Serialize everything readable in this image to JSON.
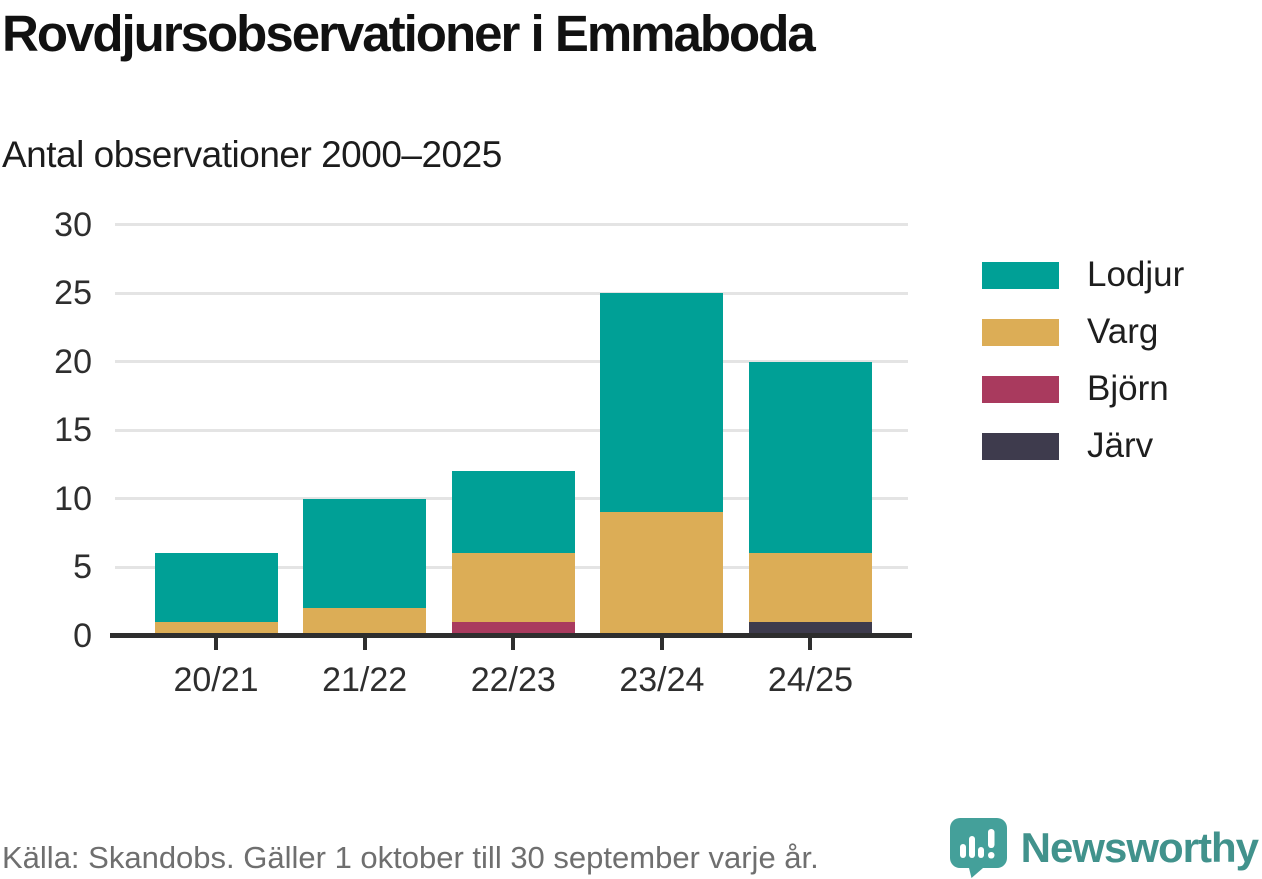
{
  "header": {
    "title": "Rovdjursobservationer i Emmaboda",
    "subtitle": "Antal observationer 2000–2025"
  },
  "chart_data": {
    "type": "bar",
    "stacked": true,
    "title": "Rovdjursobservationer i Emmaboda",
    "subtitle": "Antal observationer 2000–2025",
    "categories": [
      "20/21",
      "21/22",
      "22/23",
      "23/24",
      "24/25"
    ],
    "series": [
      {
        "name": "Lodjur",
        "color": "#00a096",
        "values": [
          5,
          8,
          6,
          16,
          14
        ]
      },
      {
        "name": "Varg",
        "color": "#dcad56",
        "values": [
          1,
          2,
          5,
          9,
          5
        ]
      },
      {
        "name": "Björn",
        "color": "#a93a5e",
        "values": [
          0,
          0,
          1,
          0,
          0
        ]
      },
      {
        "name": "Järv",
        "color": "#3e3b4d",
        "values": [
          0,
          0,
          0,
          0,
          1
        ]
      }
    ],
    "stack_order_bottom_to_top": [
      "Järv",
      "Björn",
      "Varg",
      "Lodjur"
    ],
    "totals": [
      6,
      10,
      12,
      25,
      20
    ],
    "xlabel": "",
    "ylabel": "",
    "ylim": [
      0,
      30
    ],
    "yticks": [
      0,
      5,
      10,
      15,
      20,
      25,
      30
    ],
    "grid": true,
    "legend_position": "right"
  },
  "footer": {
    "source": "Källa: Skandobs. Gäller 1 oktober till 30 september varje år.",
    "brand": "Newsworthy"
  },
  "colors": {
    "grid": "#e4e4e4",
    "axis": "#2e2e2e",
    "title_text": "#111111",
    "muted_text": "#6f6f6f",
    "brand_teal": "#41928c",
    "logo_bubble": "#44a09a"
  }
}
